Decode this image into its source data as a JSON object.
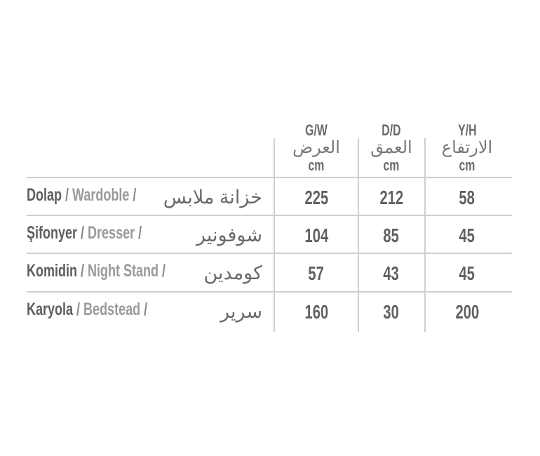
{
  "columns": [
    {
      "code": "G/W",
      "arabic": "العرض",
      "unit": "cm"
    },
    {
      "code": "D/D",
      "arabic": "العمق",
      "unit": "cm"
    },
    {
      "code": "Y/H",
      "arabic": "الارتفاع",
      "unit": "cm"
    }
  ],
  "rows": [
    {
      "turkish": "Dolap",
      "english": "Wardoble",
      "arabic": "خزانة ملابس",
      "values": [
        "225",
        "212",
        "58"
      ]
    },
    {
      "turkish": "Şifonyer",
      "english": "Dresser",
      "arabic": "شوفونير",
      "values": [
        "104",
        "85",
        "45"
      ]
    },
    {
      "turkish": "Komidin",
      "english": "Night Stand",
      "arabic": "كومدين",
      "values": [
        "57",
        "43",
        "45"
      ]
    },
    {
      "turkish": "Karyola",
      "english": "Bedstead",
      "arabic": "سرير",
      "values": [
        "160",
        "30",
        "200"
      ]
    }
  ],
  "separator": "/",
  "colors": {
    "turkish": "#5e5e5e",
    "english": "#9a9a9a",
    "lines": "#cfcfcf"
  }
}
